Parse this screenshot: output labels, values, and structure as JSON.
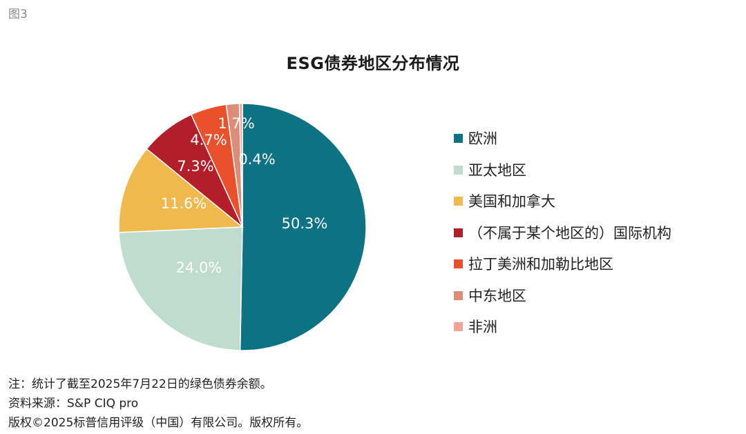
{
  "figure_label": "图3",
  "chart_data": {
    "type": "pie",
    "title": "ESG债券地区分布情况",
    "slices": [
      {
        "label": "欧洲",
        "value": 50.3,
        "value_label": "50.3%",
        "color": "#0e7285"
      },
      {
        "label": "亚太地区",
        "value": 24.0,
        "value_label": "24.0%",
        "color": "#bfdccf"
      },
      {
        "label": "美国和加拿大",
        "value": 11.6,
        "value_label": "11.6%",
        "color": "#f0b94d"
      },
      {
        "label": "（不属于某个地区的）国际机构",
        "value": 7.3,
        "value_label": "7.3%",
        "color": "#b21e29"
      },
      {
        "label": "拉丁美洲和加勒比地区",
        "value": 4.7,
        "value_label": "4.7%",
        "color": "#e9512c"
      },
      {
        "label": "中东地区",
        "value": 1.7,
        "value_label": "1.7%",
        "color": "#dc8c77"
      },
      {
        "label": "非洲",
        "value": 0.4,
        "value_label": "0.4%",
        "color": "#f2a493"
      }
    ],
    "start_angle": "12 o'clock",
    "direction": "clockwise",
    "legend_position": "right"
  },
  "notes": [
    "注：统计了截至2025年7月22日的绿色债券余额。",
    "资料来源：S&P CIQ pro",
    "版权©2025标普信用评级（中国）有限公司。版权所有。"
  ]
}
